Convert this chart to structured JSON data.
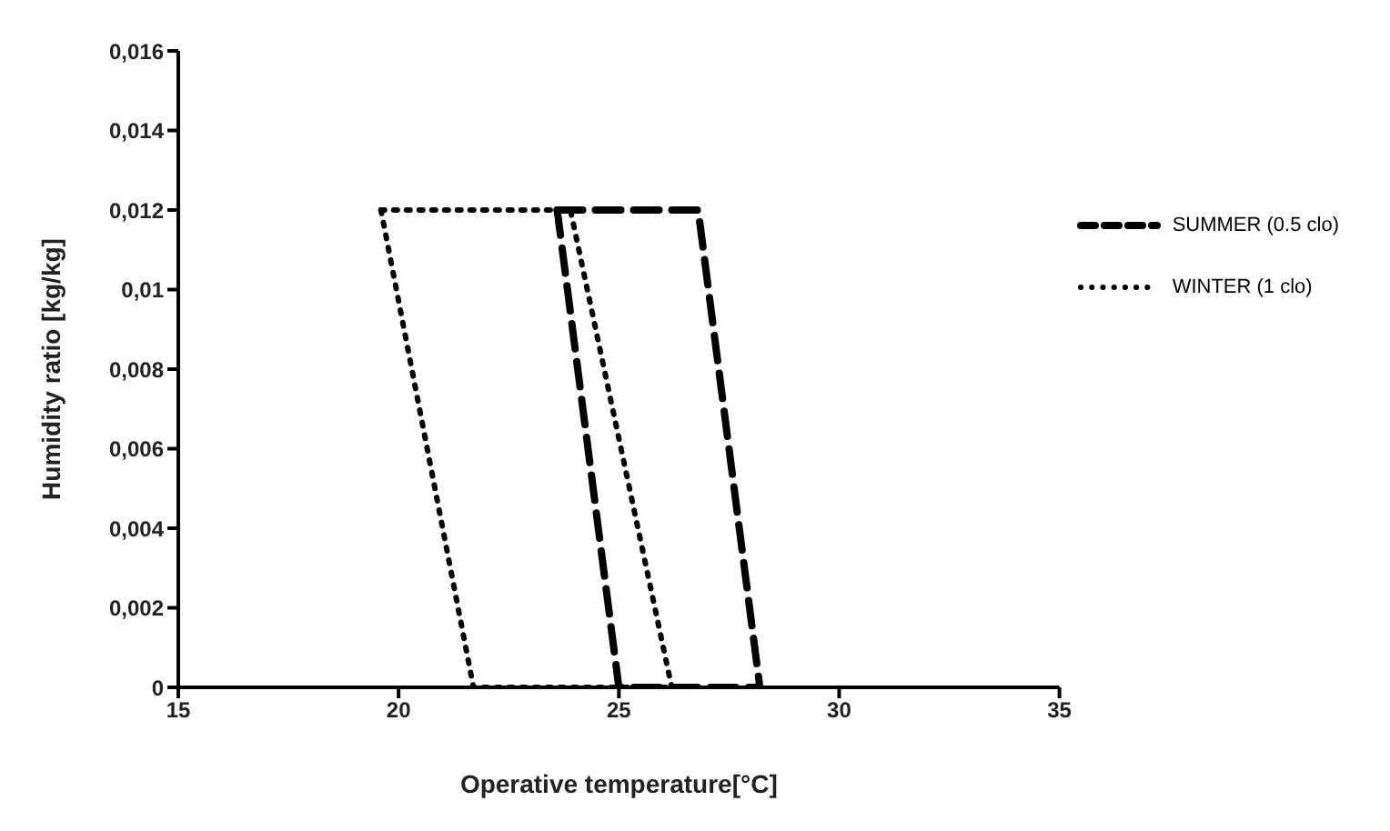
{
  "chart_data": {
    "type": "line",
    "xlabel": "Operative temperature[°C]",
    "ylabel": "Humidity ratio [kg/kg]",
    "xlim": [
      15,
      35
    ],
    "xticks": [
      15,
      20,
      25,
      30,
      35
    ],
    "ylim": [
      0,
      0.016
    ],
    "yticks": [
      {
        "value": 0,
        "label": "0"
      },
      {
        "value": 0.002,
        "label": "0,002"
      },
      {
        "value": 0.004,
        "label": "0,004"
      },
      {
        "value": 0.006,
        "label": "0,006"
      },
      {
        "value": 0.008,
        "label": "0,008"
      },
      {
        "value": 0.01,
        "label": "0,01"
      },
      {
        "value": 0.012,
        "label": "0,012"
      },
      {
        "value": 0.014,
        "label": "0,014"
      },
      {
        "value": 0.016,
        "label": "0,016"
      }
    ],
    "grid": false,
    "legend": "top right",
    "marker": "none",
    "series": [
      {
        "name": "SUMMER (0.5 clo)",
        "color": "#000000",
        "line_style": "dashed",
        "x": [
          23.6,
          26.8,
          28.2
        ],
        "values": [
          0.012,
          0.012,
          0
        ]
      },
      {
        "color": "#000000",
        "line_style": "dashed",
        "x": [
          23.6,
          25.0,
          28.2
        ],
        "values": [
          0.012,
          0,
          0
        ]
      },
      {
        "name": "WINTER (1 clo)",
        "color": "#000000",
        "line_style": "dotted",
        "x": [
          19.6,
          23.9,
          26.2
        ],
        "values": [
          0.012,
          0.012,
          0
        ]
      },
      {
        "color": "#000000",
        "line_style": "dotted",
        "x": [
          19.6,
          21.7,
          26.2
        ],
        "values": [
          0.012,
          0,
          0
        ]
      }
    ]
  }
}
